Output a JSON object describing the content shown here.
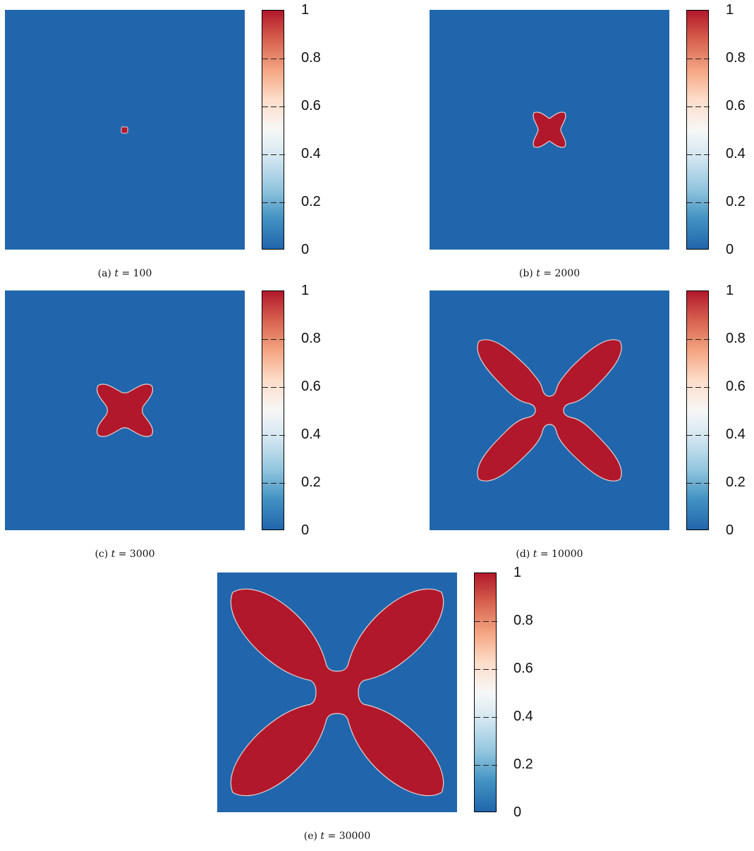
{
  "colorbar": {
    "ticks": [
      "1",
      "0.8",
      "0.6",
      "0.4",
      "0.2",
      "0"
    ],
    "colors": [
      "#2166ac",
      "#4393c3",
      "#92c5de",
      "#d1e5f0",
      "#f7f7f7",
      "#fddbc7",
      "#f4a582",
      "#d6604d",
      "#b2182b"
    ]
  },
  "panels": [
    {
      "id": "a",
      "caption_prefix": "(a)",
      "caption_var": "t",
      "caption_eq": " = 100"
    },
    {
      "id": "b",
      "caption_prefix": "(b)",
      "caption_var": "t",
      "caption_eq": " = 2000"
    },
    {
      "id": "c",
      "caption_prefix": "(c)",
      "caption_var": "t",
      "caption_eq": " = 3000"
    },
    {
      "id": "d",
      "caption_prefix": "(d)",
      "caption_var": "t",
      "caption_eq": " = 10000"
    },
    {
      "id": "e",
      "caption_prefix": "(e)",
      "caption_var": "t",
      "caption_eq": " = 30000"
    }
  ],
  "chart_data": [
    {
      "type": "heatmap",
      "panel": "(a)",
      "time": 100,
      "zlim": [
        0,
        1
      ],
      "background_value": 0,
      "crystal_value": 1,
      "shape": "small square seed"
    },
    {
      "type": "heatmap",
      "panel": "(b)",
      "time": 2000,
      "zlim": [
        0,
        1
      ],
      "background_value": 0,
      "crystal_value": 1,
      "shape": "four-armed crystal"
    },
    {
      "type": "heatmap",
      "panel": "(c)",
      "time": 3000,
      "zlim": [
        0,
        1
      ],
      "background_value": 0,
      "crystal_value": 1,
      "shape": "four-armed crystal"
    },
    {
      "type": "heatmap",
      "panel": "(d)",
      "time": 10000,
      "zlim": [
        0,
        1
      ],
      "background_value": 0,
      "crystal_value": 1,
      "shape": "four-armed dendrite"
    },
    {
      "type": "heatmap",
      "panel": "(e)",
      "time": 30000,
      "zlim": [
        0,
        1
      ],
      "background_value": 0,
      "crystal_value": 1,
      "shape": "four-armed dendrite"
    }
  ]
}
